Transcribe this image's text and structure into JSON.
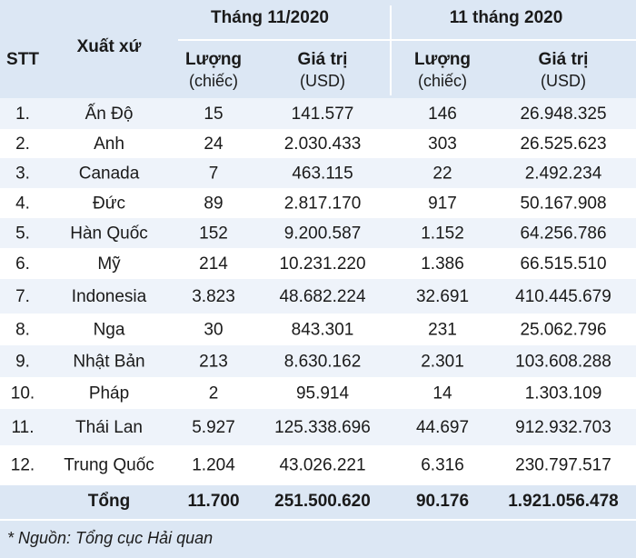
{
  "header": {
    "stt": "STT",
    "origin": "Xuất xứ",
    "groups": [
      "Tháng 11/2020",
      "11 tháng 2020"
    ],
    "columns": [
      {
        "name": "Lượng",
        "unit": "(chiếc)"
      },
      {
        "name": "Giá trị",
        "unit": "(USD)"
      },
      {
        "name": "Lượng",
        "unit": "(chiếc)"
      },
      {
        "name": "Giá trị",
        "unit": "(USD)"
      }
    ]
  },
  "table": {
    "rows": [
      [
        "1.",
        "Ấn Độ",
        "15",
        "141.577",
        "146",
        "26.948.325"
      ],
      [
        "2.",
        "Anh",
        "24",
        "2.030.433",
        "303",
        "26.525.623"
      ],
      [
        "3.",
        "Canada",
        "7",
        "463.115",
        "22",
        "2.492.234"
      ],
      [
        "4.",
        "Đức",
        "89",
        "2.817.170",
        "917",
        "50.167.908"
      ],
      [
        "5.",
        "Hàn Quốc",
        "152",
        "9.200.587",
        "1.152",
        "64.256.786"
      ],
      [
        "6.",
        "Mỹ",
        "214",
        "10.231.220",
        "1.386",
        "66.515.510"
      ],
      [
        "7.",
        "Indonesia",
        "3.823",
        "48.682.224",
        "32.691",
        "410.445.679"
      ],
      [
        "8.",
        "Nga",
        "30",
        "843.301",
        "231",
        "25.062.796"
      ],
      [
        "9.",
        "Nhật Bản",
        "213",
        "8.630.162",
        "2.301",
        "103.608.288"
      ],
      [
        "10.",
        "Pháp",
        "2",
        "95.914",
        "14",
        "1.303.109"
      ],
      [
        "11.",
        "Thái Lan",
        "5.927",
        "125.338.696",
        "44.697",
        "912.932.703"
      ],
      [
        "12.",
        "Trung Quốc",
        "1.204",
        "43.026.221",
        "6.316",
        "230.797.517"
      ]
    ],
    "total": [
      "Tổng",
      "11.700",
      "251.500.620",
      "90.176",
      "1.921.056.478"
    ]
  },
  "note": "* Nguồn: Tổng cục Hải quan"
}
